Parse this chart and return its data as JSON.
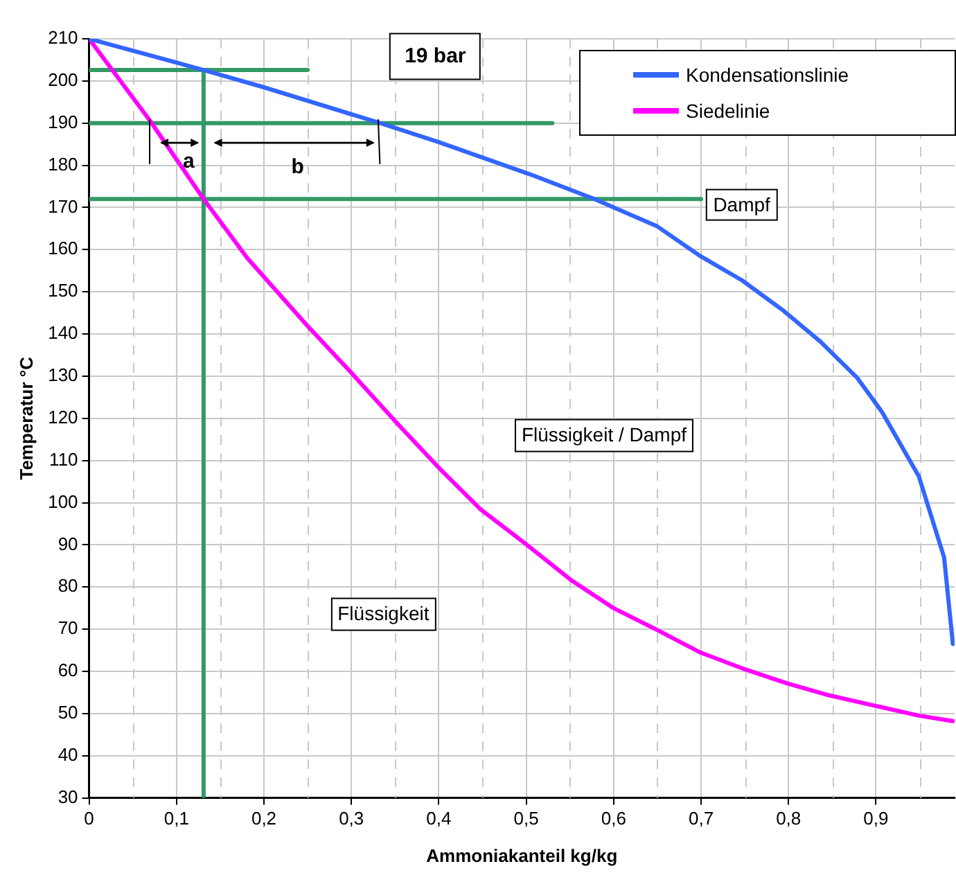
{
  "chart_data": {
    "type": "line",
    "xlabel": "Ammoniakanteil kg/kg",
    "ylabel": "Temperatur °C",
    "series": [
      {
        "name": "Kondensationslinie",
        "color": "#3366ff",
        "x": [
          0,
          0.131,
          0.2,
          0.333,
          0.4,
          0.508,
          0.578,
          0.65,
          0.699,
          0.747,
          0.795,
          0.837,
          0.879,
          0.907,
          0.949,
          0.978,
          0.988
        ],
        "values": [
          210,
          202.6,
          198.5,
          190,
          185.5,
          177.6,
          172,
          165.5,
          158.5,
          152.7,
          145.4,
          138.1,
          129.5,
          121.5,
          106.3,
          87,
          66.5
        ]
      },
      {
        "name": "Siedelinie",
        "color": "#ff00ff",
        "x": [
          0,
          0.07,
          0.131,
          0.181,
          0.249,
          0.3,
          0.352,
          0.4,
          0.448,
          0.499,
          0.551,
          0.599,
          0.65,
          0.699,
          0.75,
          0.798,
          0.843,
          0.898,
          0.949,
          0.988
        ],
        "values": [
          210,
          190.5,
          172,
          158,
          142.1,
          130.8,
          118.9,
          108.3,
          98.4,
          90.3,
          81.7,
          75.1,
          69.8,
          64.5,
          60.5,
          57.2,
          54.5,
          51.9,
          49.5,
          48.2
        ]
      },
      {
        "color": "#339966",
        "x": [
          0,
          0.25
        ],
        "values": [
          202.6,
          202.6
        ]
      },
      {
        "color": "#339966",
        "x": [
          0,
          0.53
        ],
        "values": [
          190,
          190
        ]
      },
      {
        "color": "#339966",
        "x": [
          0,
          0.7
        ],
        "values": [
          172,
          172
        ]
      },
      {
        "color": "#339966",
        "x": [
          0.131,
          0.131
        ],
        "values": [
          202.6,
          30
        ]
      }
    ],
    "xlim": [
      0,
      0.99
    ],
    "xticks": [
      0,
      {
        "value": 0.05,
        "label": null
      },
      {
        "value": 0.1,
        "label": "0,1"
      },
      {
        "value": 0.15,
        "label": null
      },
      {
        "value": 0.2,
        "label": "0,2"
      },
      {
        "value": 0.25,
        "label": null
      },
      {
        "value": 0.3,
        "label": "0,3"
      },
      {
        "value": 0.35,
        "label": null
      },
      {
        "value": 0.4,
        "label": "0,4"
      },
      {
        "value": 0.45,
        "label": null
      },
      {
        "value": 0.5,
        "label": "0,5"
      },
      {
        "value": 0.55,
        "label": null
      },
      {
        "value": 0.6,
        "label": "0,6"
      },
      {
        "value": 0.65,
        "label": null
      },
      {
        "value": 0.7,
        "label": "0,7"
      },
      {
        "value": 0.75,
        "label": null
      },
      {
        "value": 0.8,
        "label": "0,8"
      },
      {
        "value": 0.85,
        "label": null
      },
      {
        "value": 0.9,
        "label": "0,9"
      },
      {
        "value": 0.95,
        "label": null
      }
    ],
    "ylim": [
      30,
      210
    ],
    "yticks": [
      30,
      40,
      50,
      60,
      70,
      80,
      90,
      100,
      110,
      120,
      130,
      140,
      150,
      160,
      170,
      180,
      190,
      200,
      210
    ],
    "grid": true,
    "legend": "top right",
    "marker": "none",
    "line_style": "solid",
    "annotations": [
      "19 bar",
      "Dampf",
      "Flüssigkeit / Dampf",
      "Flüssigkeit",
      "a",
      "b"
    ]
  }
}
